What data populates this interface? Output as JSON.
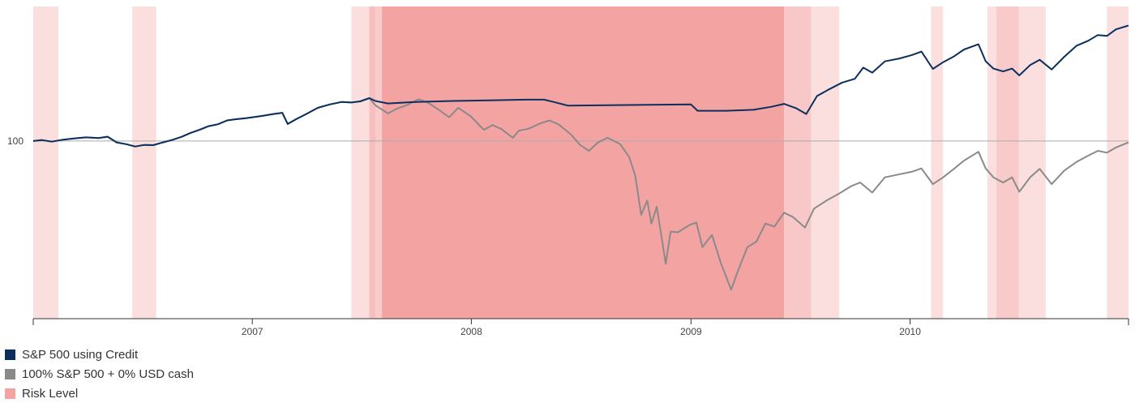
{
  "chart_data": {
    "type": "line",
    "title": "",
    "xlabel": "",
    "ylabel": "",
    "y_scale": "log",
    "x_range": [
      "2006-01-01",
      "2010-12-31"
    ],
    "x_ticks": [
      "2007",
      "2008",
      "2009",
      "2010"
    ],
    "y_ticks": [
      100
    ],
    "ylim": [
      46,
      180
    ],
    "grid": "horizontal reference line at 100",
    "legend_position": "bottom-left",
    "colors": {
      "credit": "#0b2f5e",
      "spx": "#8a8a8a",
      "risk": "#f4a3a3",
      "refline": "#aaaaaa",
      "axis": "#333333"
    },
    "legend": [
      {
        "label": "S&P 500 using Credit",
        "color": "#0b2f5e"
      },
      {
        "label": "100% S&P 500 + 0% USD cash",
        "color": "#8a8a8a"
      },
      {
        "label": "Risk Level",
        "color": "#f4a3a3"
      }
    ],
    "risk_bands": [
      {
        "start": "2006-01-01",
        "end": "2006-02-12",
        "opacity": 0.35
      },
      {
        "start": "2006-06-15",
        "end": "2006-07-25",
        "opacity": 0.35
      },
      {
        "start": "2007-06-15",
        "end": "2007-07-25",
        "opacity": 0.35
      },
      {
        "start": "2007-07-15",
        "end": "2007-08-05",
        "opacity": 0.55
      },
      {
        "start": "2007-08-05",
        "end": "2009-06-05",
        "opacity": 1.0
      },
      {
        "start": "2009-06-05",
        "end": "2009-07-20",
        "opacity": 0.6
      },
      {
        "start": "2009-07-20",
        "end": "2009-09-05",
        "opacity": 0.35
      },
      {
        "start": "2010-02-05",
        "end": "2010-02-25",
        "opacity": 0.35
      },
      {
        "start": "2010-05-10",
        "end": "2010-08-15",
        "opacity": 0.35
      },
      {
        "start": "2010-05-25",
        "end": "2010-07-01",
        "opacity": 0.35
      },
      {
        "start": "2010-11-25",
        "end": "2010-12-31",
        "opacity": 0.35
      }
    ],
    "series": [
      {
        "name": "S&P 500 using Credit",
        "key": "credit",
        "points": [
          [
            "2006-01-01",
            100
          ],
          [
            "2006-01-15",
            100.4
          ],
          [
            "2006-02-01",
            99.7
          ],
          [
            "2006-02-20",
            100.6
          ],
          [
            "2006-03-10",
            101.1
          ],
          [
            "2006-03-30",
            101.6
          ],
          [
            "2006-04-20",
            101.3
          ],
          [
            "2006-05-05",
            101.9
          ],
          [
            "2006-05-20",
            99.4
          ],
          [
            "2006-06-05",
            98.6
          ],
          [
            "2006-06-20",
            97.6
          ],
          [
            "2006-07-05",
            98.3
          ],
          [
            "2006-07-20",
            98.2
          ],
          [
            "2006-08-05",
            99.4
          ],
          [
            "2006-08-20",
            100.4
          ],
          [
            "2006-09-05",
            101.8
          ],
          [
            "2006-09-20",
            103.6
          ],
          [
            "2006-10-05",
            105
          ],
          [
            "2006-10-20",
            106.7
          ],
          [
            "2006-11-05",
            107.6
          ],
          [
            "2006-11-20",
            109.4
          ],
          [
            "2006-12-05",
            110
          ],
          [
            "2006-12-20",
            110.4
          ],
          [
            "2007-01-05",
            111.1
          ],
          [
            "2007-01-20",
            111.7
          ],
          [
            "2007-02-05",
            112.5
          ],
          [
            "2007-02-20",
            113.1
          ],
          [
            "2007-03-01",
            107.7
          ],
          [
            "2007-03-15",
            110
          ],
          [
            "2007-04-01",
            112.5
          ],
          [
            "2007-04-20",
            115.6
          ],
          [
            "2007-05-10",
            117.3
          ],
          [
            "2007-05-30",
            118.6
          ],
          [
            "2007-06-15",
            118.3
          ],
          [
            "2007-06-30",
            118.9
          ],
          [
            "2007-07-15",
            120.6
          ],
          [
            "2007-07-25",
            119.1
          ],
          [
            "2007-08-15",
            117.8
          ],
          [
            "2007-10-01",
            118.6
          ],
          [
            "2007-12-01",
            119.1
          ],
          [
            "2008-02-01",
            119.4
          ],
          [
            "2008-04-01",
            119.8
          ],
          [
            "2008-05-01",
            119.8
          ],
          [
            "2008-05-15",
            118.8
          ],
          [
            "2008-06-10",
            116.7
          ],
          [
            "2008-09-01",
            117.0
          ],
          [
            "2009-01-01",
            117.3
          ],
          [
            "2009-01-12",
            114.1
          ],
          [
            "2009-03-01",
            114.1
          ],
          [
            "2009-04-15",
            114.6
          ],
          [
            "2009-05-15",
            116.1
          ],
          [
            "2009-06-05",
            117.6
          ],
          [
            "2009-06-25",
            115.4
          ],
          [
            "2009-07-12",
            112.5
          ],
          [
            "2009-07-30",
            121.7
          ],
          [
            "2009-08-20",
            125.5
          ],
          [
            "2009-09-10",
            129.1
          ],
          [
            "2009-10-01",
            131.2
          ],
          [
            "2009-10-15",
            137.8
          ],
          [
            "2009-10-30",
            134.8
          ],
          [
            "2009-11-20",
            141.6
          ],
          [
            "2009-12-15",
            143.5
          ],
          [
            "2010-01-05",
            145.7
          ],
          [
            "2010-01-20",
            147.8
          ],
          [
            "2010-02-08",
            137
          ],
          [
            "2010-02-25",
            141.1
          ],
          [
            "2010-03-15",
            144.7
          ],
          [
            "2010-04-01",
            149.2
          ],
          [
            "2010-04-25",
            152.6
          ],
          [
            "2010-05-07",
            141.7
          ],
          [
            "2010-05-20",
            137.2
          ],
          [
            "2010-06-05",
            135.5
          ],
          [
            "2010-06-20",
            137.2
          ],
          [
            "2010-07-02",
            133.2
          ],
          [
            "2010-07-20",
            139.3
          ],
          [
            "2010-08-05",
            142.6
          ],
          [
            "2010-08-25",
            136.7
          ],
          [
            "2010-09-15",
            144.5
          ],
          [
            "2010-10-05",
            151.5
          ],
          [
            "2010-10-25",
            155
          ],
          [
            "2010-11-10",
            158.9
          ],
          [
            "2010-11-25",
            158.3
          ],
          [
            "2010-12-10",
            162.9
          ],
          [
            "2010-12-31",
            165.6
          ]
        ]
      },
      {
        "name": "100% S&P 500 + 0% USD cash",
        "key": "spx",
        "points": [
          [
            "2006-01-01",
            100
          ],
          [
            "2006-01-15",
            100.4
          ],
          [
            "2006-02-01",
            99.7
          ],
          [
            "2006-02-20",
            100.6
          ],
          [
            "2006-03-10",
            101.1
          ],
          [
            "2006-03-30",
            101.6
          ],
          [
            "2006-04-20",
            101.3
          ],
          [
            "2006-05-05",
            101.9
          ],
          [
            "2006-05-20",
            99.4
          ],
          [
            "2006-06-05",
            98.6
          ],
          [
            "2006-06-20",
            97.6
          ],
          [
            "2006-07-05",
            98.3
          ],
          [
            "2006-07-20",
            98.2
          ],
          [
            "2006-08-05",
            99.4
          ],
          [
            "2006-08-20",
            100.4
          ],
          [
            "2006-09-05",
            101.8
          ],
          [
            "2006-09-20",
            103.6
          ],
          [
            "2006-10-05",
            105
          ],
          [
            "2006-10-20",
            106.7
          ],
          [
            "2006-11-05",
            107.6
          ],
          [
            "2006-11-20",
            109.4
          ],
          [
            "2006-12-05",
            110
          ],
          [
            "2006-12-20",
            110.4
          ],
          [
            "2007-01-05",
            111.1
          ],
          [
            "2007-01-20",
            111.7
          ],
          [
            "2007-02-05",
            112.5
          ],
          [
            "2007-02-20",
            113.1
          ],
          [
            "2007-03-01",
            107.7
          ],
          [
            "2007-03-15",
            110
          ],
          [
            "2007-04-01",
            112.5
          ],
          [
            "2007-04-20",
            115.6
          ],
          [
            "2007-05-10",
            117.3
          ],
          [
            "2007-05-30",
            118.6
          ],
          [
            "2007-06-15",
            118.3
          ],
          [
            "2007-06-30",
            118.9
          ],
          [
            "2007-07-15",
            120.6
          ],
          [
            "2007-07-25",
            116.9
          ],
          [
            "2007-08-15",
            112.8
          ],
          [
            "2007-09-01",
            115.4
          ],
          [
            "2007-09-15",
            116.9
          ],
          [
            "2007-10-05",
            120
          ],
          [
            "2007-10-20",
            118.3
          ],
          [
            "2007-11-10",
            114.2
          ],
          [
            "2007-11-25",
            110.9
          ],
          [
            "2007-12-10",
            115.6
          ],
          [
            "2007-12-31",
            111.4
          ],
          [
            "2008-01-15",
            106.9
          ],
          [
            "2008-01-22",
            105
          ],
          [
            "2008-02-05",
            107.2
          ],
          [
            "2008-02-20",
            105.4
          ],
          [
            "2008-03-10",
            101.4
          ],
          [
            "2008-03-20",
            104.6
          ],
          [
            "2008-04-05",
            105.5
          ],
          [
            "2008-04-25",
            108
          ],
          [
            "2008-05-10",
            109.4
          ],
          [
            "2008-05-25",
            107.6
          ],
          [
            "2008-06-15",
            102.9
          ],
          [
            "2008-06-30",
            98.3
          ],
          [
            "2008-07-15",
            95.8
          ],
          [
            "2008-07-30",
            99.4
          ],
          [
            "2008-08-15",
            101.4
          ],
          [
            "2008-09-05",
            98.6
          ],
          [
            "2008-09-20",
            93.2
          ],
          [
            "2008-09-30",
            86
          ],
          [
            "2008-10-10",
            72.4
          ],
          [
            "2008-10-20",
            77.1
          ],
          [
            "2008-10-27",
            69.7
          ],
          [
            "2008-11-05",
            75
          ],
          [
            "2008-11-20",
            58.5
          ],
          [
            "2008-11-28",
            67.3
          ],
          [
            "2008-12-10",
            67.1
          ],
          [
            "2008-12-31",
            69.4
          ],
          [
            "2009-01-10",
            70
          ],
          [
            "2009-01-20",
            62.9
          ],
          [
            "2009-02-05",
            66.3
          ],
          [
            "2009-02-20",
            58.5
          ],
          [
            "2009-03-09",
            52.2
          ],
          [
            "2009-03-20",
            56.6
          ],
          [
            "2009-04-05",
            62.9
          ],
          [
            "2009-04-20",
            64.4
          ],
          [
            "2009-05-05",
            69.7
          ],
          [
            "2009-05-20",
            68.8
          ],
          [
            "2009-06-05",
            73.1
          ],
          [
            "2009-06-20",
            71.7
          ],
          [
            "2009-07-10",
            68.5
          ],
          [
            "2009-07-25",
            74.4
          ],
          [
            "2009-08-15",
            77.1
          ],
          [
            "2009-09-05",
            79.5
          ],
          [
            "2009-09-25",
            82.1
          ],
          [
            "2009-10-10",
            83.4
          ],
          [
            "2009-10-30",
            79.8
          ],
          [
            "2009-11-20",
            85.3
          ],
          [
            "2009-12-15",
            86.5
          ],
          [
            "2010-01-05",
            87.5
          ],
          [
            "2010-01-20",
            88.7
          ],
          [
            "2010-02-08",
            82.8
          ],
          [
            "2010-02-25",
            85.3
          ],
          [
            "2010-03-15",
            88.5
          ],
          [
            "2010-04-01",
            91.8
          ],
          [
            "2010-04-25",
            95.4
          ],
          [
            "2010-05-07",
            88.7
          ],
          [
            "2010-05-20",
            85.3
          ],
          [
            "2010-06-05",
            83.4
          ],
          [
            "2010-06-20",
            85.3
          ],
          [
            "2010-07-02",
            80.1
          ],
          [
            "2010-07-20",
            85.3
          ],
          [
            "2010-08-05",
            88.5
          ],
          [
            "2010-08-25",
            82.8
          ],
          [
            "2010-09-15",
            87.9
          ],
          [
            "2010-10-05",
            91.2
          ],
          [
            "2010-10-25",
            93.8
          ],
          [
            "2010-11-10",
            95.8
          ],
          [
            "2010-11-25",
            95
          ],
          [
            "2010-12-10",
            97.2
          ],
          [
            "2010-12-31",
            99.4
          ]
        ]
      }
    ]
  }
}
